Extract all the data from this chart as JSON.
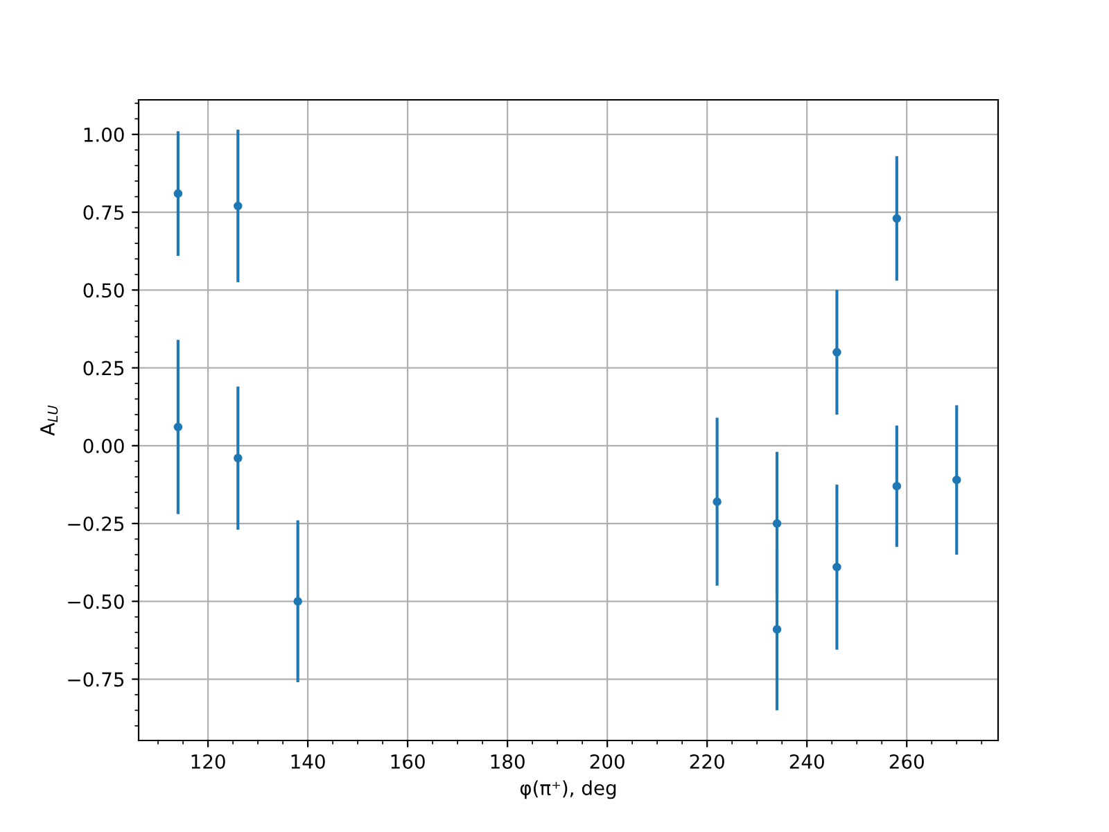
{
  "chart_data": {
    "type": "scatter",
    "xlabel": "φ(π⁺), deg",
    "ylabel": "A$_{LU}$",
    "x": [
      114,
      114,
      126,
      126,
      138,
      222,
      234,
      234,
      246,
      246,
      258,
      258,
      270
    ],
    "values": [
      0.81,
      0.06,
      0.77,
      -0.04,
      -0.5,
      -0.18,
      -0.25,
      -0.59,
      0.3,
      -0.39,
      0.73,
      -0.13,
      -0.11
    ],
    "errors": [
      0.2,
      0.28,
      0.245,
      0.23,
      0.26,
      0.27,
      0.23,
      0.26,
      0.2,
      0.265,
      0.2,
      0.195,
      0.24
    ],
    "color": "#1f77b4",
    "marker": "circle",
    "xlim": [
      106.1,
      278.3
    ],
    "ylim": [
      -0.947,
      1.111
    ],
    "xticks": [
      120,
      140,
      160,
      180,
      200,
      220,
      240,
      260
    ],
    "yticks": [
      {
        "value": -0.75,
        "label": "−0.75"
      },
      {
        "value": -0.5,
        "label": "−0.50"
      },
      {
        "value": -0.25,
        "label": "−0.25"
      },
      {
        "value": 0,
        "label": "0.00"
      },
      {
        "value": 0.25,
        "label": "0.25"
      },
      {
        "value": 0.5,
        "label": "0.50"
      },
      {
        "value": 0.75,
        "label": "0.75"
      },
      {
        "value": 1.0,
        "label": "1.00"
      }
    ],
    "grid": true
  }
}
